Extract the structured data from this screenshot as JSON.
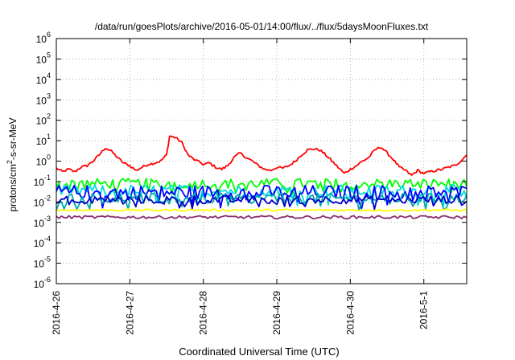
{
  "chart_data": {
    "type": "line",
    "title": "/data/run/goesPlots/archive/2016-05-01/14:00/flux/../flux/5daysMoonFluxes.txt",
    "xlabel": "Coordinated Universal Time (UTC)",
    "ylabel": "protons/cm2-s-sr-MeV",
    "ylabel_parts": [
      "protons/cm",
      "2",
      "-s-sr-MeV"
    ],
    "y_scale": "log",
    "ylim_exp": [
      -6,
      6
    ],
    "y_ticks": [
      {
        "base": "10",
        "exp": "-6",
        "value_exp": -6
      },
      {
        "base": "10",
        "exp": "-5",
        "value_exp": -5
      },
      {
        "base": "10",
        "exp": "-4",
        "value_exp": -4
      },
      {
        "base": "10",
        "exp": "-3",
        "value_exp": -3
      },
      {
        "base": "10",
        "exp": "-2",
        "value_exp": -2
      },
      {
        "base": "10",
        "exp": "-1",
        "value_exp": -1
      },
      {
        "base": "10",
        "exp": "0",
        "value_exp": 0
      },
      {
        "base": "10",
        "exp": "1",
        "value_exp": 1
      },
      {
        "base": "10",
        "exp": "2",
        "value_exp": 2
      },
      {
        "base": "10",
        "exp": "3",
        "value_exp": 3
      },
      {
        "base": "10",
        "exp": "4",
        "value_exp": 4
      },
      {
        "base": "10",
        "exp": "5",
        "value_exp": 5
      },
      {
        "base": "10",
        "exp": "6",
        "value_exp": 6
      }
    ],
    "xlim": [
      "2016-04-26",
      "2016-05-01 14:00"
    ],
    "x_ticks": [
      {
        "label": "2016-4-26",
        "date": "2016-04-26"
      },
      {
        "label": "2016-4-27",
        "date": "2016-04-27"
      },
      {
        "label": "2016-4-28",
        "date": "2016-04-28"
      },
      {
        "label": "2016-4-29",
        "date": "2016-04-29"
      },
      {
        "label": "2016-4-30",
        "date": "2016-04-30"
      },
      {
        "label": "2016-5-1",
        "date": "2016-05-01"
      }
    ],
    "grid": true,
    "series": [
      {
        "color": "#ff0000",
        "points": [
          [
            "2016-04-26 00:00",
            0.45
          ],
          [
            "2016-04-26 02:00",
            0.3
          ],
          [
            "2016-04-26 04:00",
            0.4
          ],
          [
            "2016-04-26 06:00",
            0.3
          ],
          [
            "2016-04-26 08:00",
            0.5
          ],
          [
            "2016-04-26 10:00",
            0.6
          ],
          [
            "2016-04-26 12:00",
            1.0
          ],
          [
            "2016-04-26 14:00",
            2.0
          ],
          [
            "2016-04-26 16:00",
            4.5
          ],
          [
            "2016-04-26 18:00",
            3.0
          ],
          [
            "2016-04-26 20:00",
            1.5
          ],
          [
            "2016-04-26 22:00",
            0.8
          ],
          [
            "2016-04-27 00:00",
            0.6
          ],
          [
            "2016-04-27 02:00",
            0.35
          ],
          [
            "2016-04-27 04:00",
            0.5
          ],
          [
            "2016-04-27 06:00",
            0.7
          ],
          [
            "2016-04-27 08:00",
            0.8
          ],
          [
            "2016-04-27 10:00",
            1.0
          ],
          [
            "2016-04-27 12:00",
            2.0
          ],
          [
            "2016-04-27 13:00",
            17.0
          ],
          [
            "2016-04-27 15:00",
            14.0
          ],
          [
            "2016-04-27 17:00",
            8.0
          ],
          [
            "2016-04-27 19:00",
            2.0
          ],
          [
            "2016-04-27 21:00",
            1.2
          ],
          [
            "2016-04-28 00:00",
            0.7
          ],
          [
            "2016-04-28 02:00",
            0.8
          ],
          [
            "2016-04-28 04:00",
            0.5
          ],
          [
            "2016-04-28 06:00",
            0.4
          ],
          [
            "2016-04-28 08:00",
            0.6
          ],
          [
            "2016-04-28 10:00",
            1.5
          ],
          [
            "2016-04-28 12:00",
            2.5
          ],
          [
            "2016-04-28 14:00",
            1.5
          ],
          [
            "2016-04-28 16:00",
            1.0
          ],
          [
            "2016-04-28 18:00",
            0.6
          ],
          [
            "2016-04-28 20:00",
            0.4
          ],
          [
            "2016-04-28 22:00",
            0.35
          ],
          [
            "2016-04-29 00:00",
            0.5
          ],
          [
            "2016-04-29 02:00",
            0.45
          ],
          [
            "2016-04-29 04:00",
            0.6
          ],
          [
            "2016-04-29 06:00",
            1.0
          ],
          [
            "2016-04-29 08:00",
            2.0
          ],
          [
            "2016-04-29 10:00",
            3.5
          ],
          [
            "2016-04-29 12:00",
            4.0
          ],
          [
            "2016-04-29 14:00",
            3.5
          ],
          [
            "2016-04-29 16:00",
            2.0
          ],
          [
            "2016-04-29 18:00",
            1.0
          ],
          [
            "2016-04-29 20:00",
            0.5
          ],
          [
            "2016-04-29 22:00",
            0.25
          ],
          [
            "2016-04-30 00:00",
            0.4
          ],
          [
            "2016-04-30 02:00",
            0.6
          ],
          [
            "2016-04-30 04:00",
            1.0
          ],
          [
            "2016-04-30 06:00",
            1.5
          ],
          [
            "2016-04-30 08:00",
            3.5
          ],
          [
            "2016-04-30 10:00",
            5.0
          ],
          [
            "2016-04-30 12:00",
            2.5
          ],
          [
            "2016-04-30 14:00",
            1.2
          ],
          [
            "2016-04-30 16:00",
            0.5
          ],
          [
            "2016-04-30 18:00",
            0.35
          ],
          [
            "2016-04-30 20:00",
            0.2
          ],
          [
            "2016-04-30 22:00",
            0.35
          ],
          [
            "2016-05-01 00:00",
            0.25
          ],
          [
            "2016-05-01 02:00",
            0.3
          ],
          [
            "2016-05-01 04:00",
            0.35
          ],
          [
            "2016-05-01 06:00",
            0.4
          ],
          [
            "2016-05-01 08:00",
            0.5
          ],
          [
            "2016-05-01 10:00",
            0.6
          ],
          [
            "2016-05-01 12:00",
            1.0
          ],
          [
            "2016-05-01 14:00",
            2.0
          ]
        ]
      },
      {
        "color": "#00ff00",
        "level": 0.08,
        "jitter": 0.5
      },
      {
        "color": "#00dddd",
        "level": 0.035,
        "jitter": 0.6
      },
      {
        "color": "#0000ff",
        "level": 0.03,
        "jitter": 0.7
      },
      {
        "color": "#00aaaa",
        "level": 0.015,
        "jitter": 0.5
      },
      {
        "color": "#0000cc",
        "level": 0.013,
        "jitter": 0.4
      },
      {
        "color": "#ffff00",
        "level": 0.004,
        "jitter": 0.1
      },
      {
        "color": "#8b2f6e",
        "level": 0.0018,
        "jitter": 0.15
      }
    ]
  }
}
